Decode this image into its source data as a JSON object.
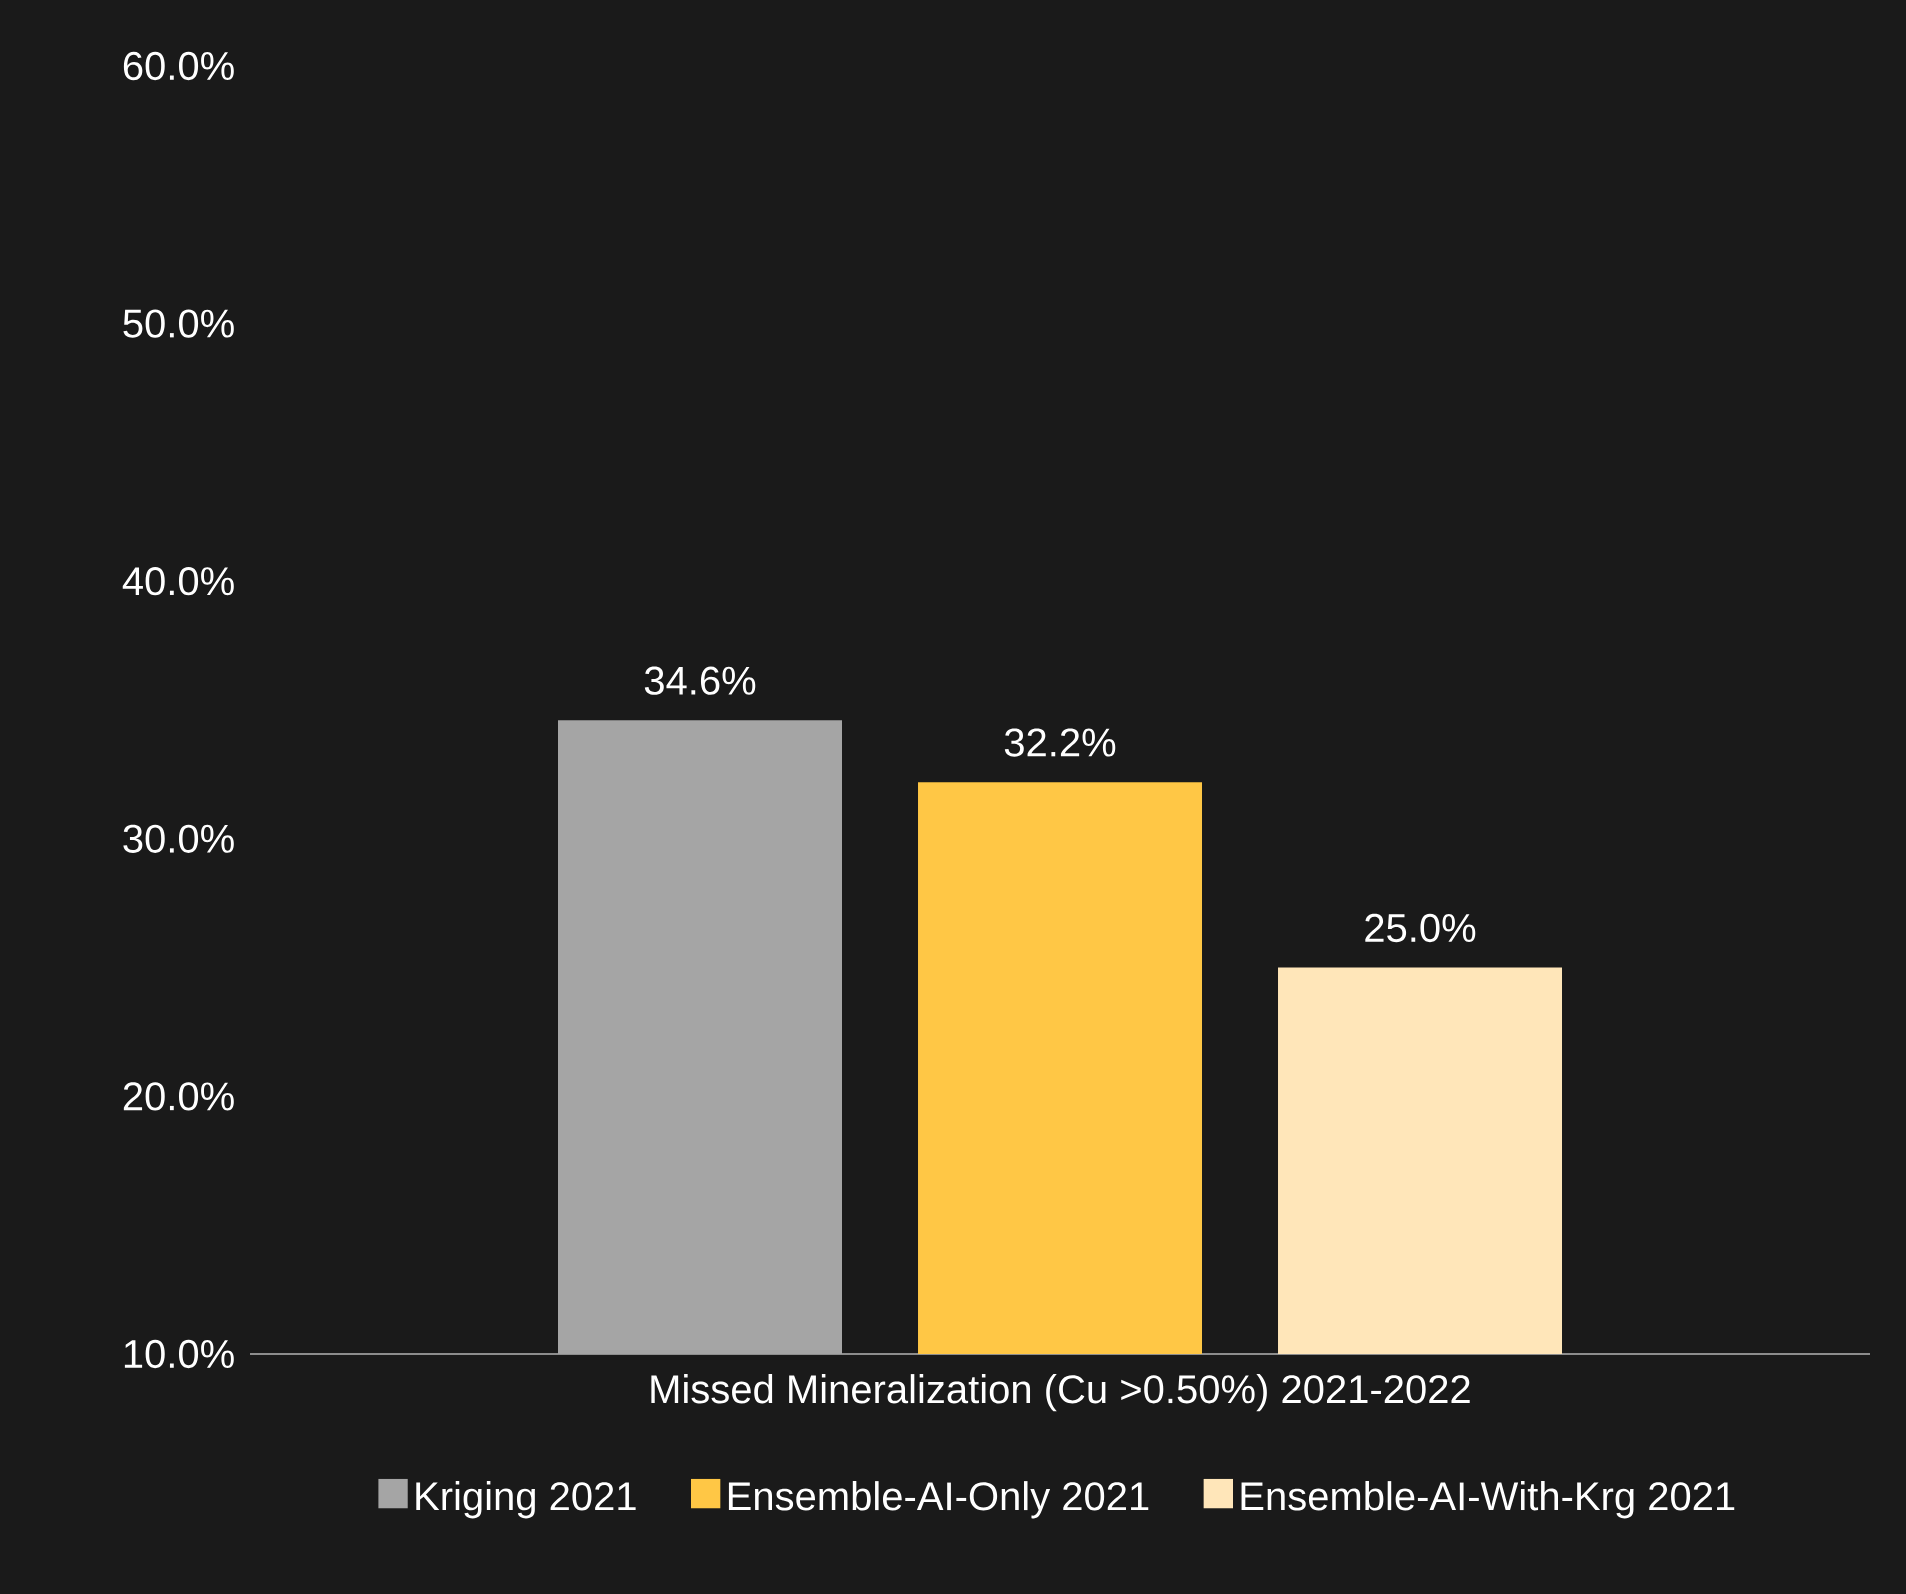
{
  "chart_data": {
    "type": "bar",
    "categories": [
      "Missed Mineralization (Cu >0.50%) 2021-2022"
    ],
    "series": [
      {
        "name": "Kriging 2021",
        "color": "#a5a5a5",
        "values": [
          34.6
        ],
        "value_labels": [
          "34.6%"
        ]
      },
      {
        "name": "Ensemble-AI-Only 2021",
        "color": "#ffc745",
        "values": [
          32.2
        ],
        "value_labels": [
          "32.2%"
        ]
      },
      {
        "name": "Ensemble-AI-With-Krg 2021",
        "color": "#ffe6b9",
        "values": [
          25.0
        ],
        "value_labels": [
          "25.0%"
        ]
      }
    ],
    "ylim": [
      10,
      60
    ],
    "yticks": [
      {
        "value": 10,
        "label": "10.0%"
      },
      {
        "value": 20,
        "label": "20.0%"
      },
      {
        "value": 30,
        "label": "30.0%"
      },
      {
        "value": 40,
        "label": "40.0%"
      },
      {
        "value": 50,
        "label": "50.0%"
      },
      {
        "value": 60,
        "label": "60.0%"
      }
    ],
    "legend": "bottom"
  }
}
